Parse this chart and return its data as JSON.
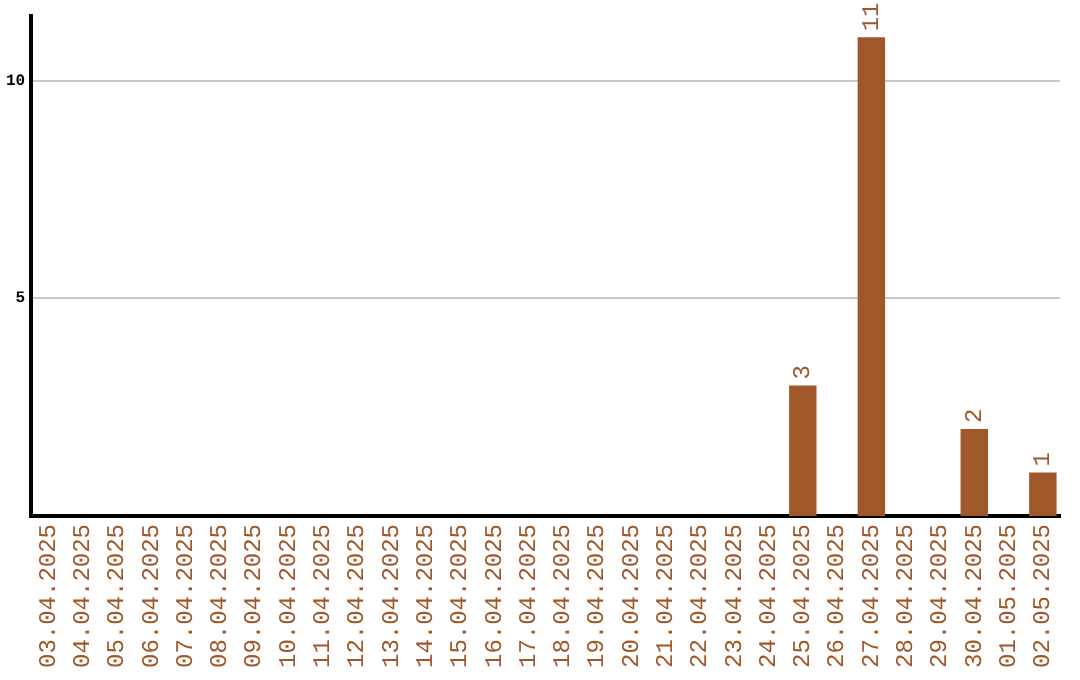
{
  "chart_data": {
    "type": "bar",
    "categories": [
      "03.04.2025",
      "04.04.2025",
      "05.04.2025",
      "06.04.2025",
      "07.04.2025",
      "08.04.2025",
      "09.04.2025",
      "10.04.2025",
      "11.04.2025",
      "12.04.2025",
      "13.04.2025",
      "14.04.2025",
      "15.04.2025",
      "16.04.2025",
      "17.04.2025",
      "18.04.2025",
      "19.04.2025",
      "20.04.2025",
      "21.04.2025",
      "22.04.2025",
      "23.04.2025",
      "24.04.2025",
      "25.04.2025",
      "26.04.2025",
      "27.04.2025",
      "28.04.2025",
      "29.04.2025",
      "30.04.2025",
      "01.05.2025",
      "02.05.2025"
    ],
    "values": [
      0,
      0,
      0,
      0,
      0,
      0,
      0,
      0,
      0,
      0,
      0,
      0,
      0,
      0,
      0,
      0,
      0,
      0,
      0,
      0,
      0,
      0,
      3,
      0,
      11,
      0,
      0,
      2,
      0,
      1
    ],
    "value_labels": [
      null,
      null,
      null,
      null,
      null,
      null,
      null,
      null,
      null,
      null,
      null,
      null,
      null,
      null,
      null,
      null,
      null,
      null,
      null,
      null,
      null,
      null,
      "3",
      null,
      "11",
      null,
      null,
      "2",
      null,
      "1"
    ],
    "color": "#a0572a",
    "ylim": [
      0,
      11.5
    ],
    "yticks": [
      5,
      10
    ],
    "grid": "y",
    "legend": false
  }
}
